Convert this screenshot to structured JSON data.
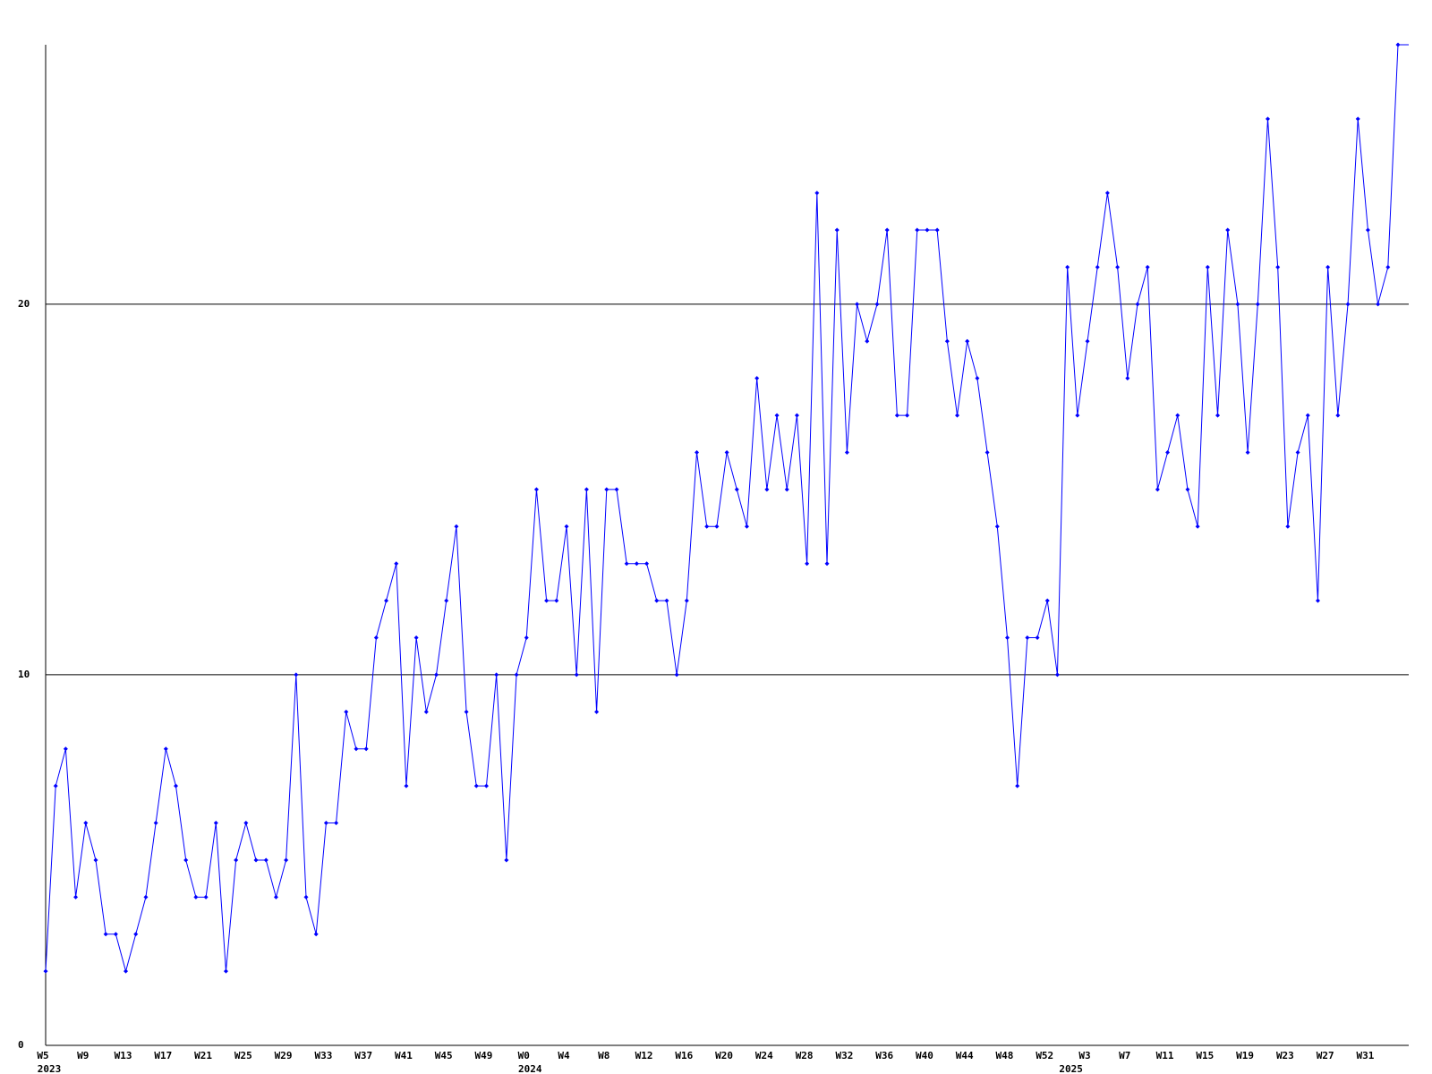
{
  "chart_data": {
    "type": "line",
    "categories": [
      "W5",
      null,
      null,
      null,
      "W9",
      null,
      null,
      null,
      "W13",
      null,
      null,
      null,
      "W17",
      null,
      null,
      null,
      "W21",
      null,
      null,
      null,
      "W25",
      null,
      null,
      null,
      "W29",
      null,
      null,
      null,
      "W33",
      null,
      null,
      null,
      "W37",
      null,
      null,
      null,
      "W41",
      null,
      null,
      null,
      "W45",
      null,
      null,
      null,
      "W49",
      null,
      null,
      null,
      "W0",
      null,
      null,
      null,
      "W4",
      null,
      null,
      null,
      "W8",
      null,
      null,
      null,
      "W12",
      null,
      null,
      null,
      "W16",
      null,
      null,
      null,
      "W20",
      null,
      null,
      null,
      "W24",
      null,
      null,
      null,
      "W28",
      null,
      null,
      null,
      "W32",
      null,
      null,
      null,
      "W36",
      null,
      null,
      null,
      "W40",
      null,
      null,
      null,
      "W44",
      null,
      null,
      null,
      "W48",
      null,
      null,
      null,
      "W52",
      null,
      null,
      null,
      "W3",
      null,
      null,
      null,
      "W7",
      null,
      null,
      null,
      "W11",
      null,
      null,
      null,
      "W15",
      null,
      null,
      null,
      "W19",
      null,
      null,
      null,
      "W23",
      null,
      null,
      null,
      "W27",
      null,
      null,
      null,
      "W31",
      null,
      null,
      null
    ],
    "year_labels": [
      "2023",
      null,
      null,
      null,
      null,
      null,
      null,
      null,
      null,
      null,
      null,
      null,
      null,
      null,
      null,
      null,
      null,
      null,
      null,
      null,
      null,
      null,
      null,
      null,
      null,
      null,
      null,
      null,
      null,
      null,
      null,
      null,
      null,
      null,
      null,
      null,
      null,
      null,
      null,
      null,
      null,
      null,
      null,
      null,
      null,
      null,
      null,
      null,
      "2024",
      null,
      null,
      null,
      null,
      null,
      null,
      null,
      null,
      null,
      null,
      null,
      null,
      null,
      null,
      null,
      null,
      null,
      null,
      null,
      null,
      null,
      null,
      null,
      null,
      null,
      null,
      null,
      null,
      null,
      null,
      null,
      null,
      null,
      null,
      null,
      null,
      null,
      null,
      null,
      null,
      null,
      null,
      null,
      null,
      null,
      null,
      null,
      null,
      null,
      null,
      null,
      null,
      null,
      "2025",
      null,
      null,
      null,
      null,
      null,
      null,
      null,
      null,
      null,
      null,
      null,
      null,
      null,
      null,
      null,
      null,
      null,
      null,
      null,
      null,
      null,
      null,
      null,
      null,
      null,
      null,
      null,
      null,
      null,
      null,
      null,
      null,
      null,
      null
    ],
    "series": [
      {
        "color": "#0000ff",
        "values": [
          2,
          7,
          8,
          4,
          6,
          5,
          3,
          3,
          2,
          3,
          4,
          6,
          8,
          7,
          5,
          4,
          4,
          6,
          2,
          5,
          6,
          5,
          5,
          4,
          5,
          10,
          4,
          3,
          6,
          6,
          9,
          8,
          8,
          11,
          12,
          13,
          7,
          11,
          9,
          10,
          12,
          14,
          9,
          7,
          7,
          10,
          5,
          10,
          11,
          15,
          12,
          12,
          14,
          10,
          15,
          9,
          15,
          15,
          13,
          13,
          13,
          12,
          12,
          10,
          12,
          16,
          14,
          14,
          16,
          15,
          14,
          18,
          15,
          17,
          15,
          17,
          13,
          23,
          13,
          22,
          16,
          20,
          19,
          20,
          22,
          17,
          17,
          22,
          22,
          22,
          19,
          17,
          19,
          18,
          16,
          14,
          11,
          7,
          11,
          11,
          12,
          10,
          21,
          17,
          19,
          21,
          23,
          21,
          18,
          20,
          21,
          15,
          16,
          17,
          15,
          14,
          21,
          17,
          22,
          20,
          16,
          20,
          25,
          21,
          14,
          16,
          17,
          12,
          21,
          17,
          20,
          25,
          22,
          20,
          21,
          27
        ]
      }
    ],
    "ylim": [
      0,
      27
    ],
    "yticks": [
      0,
      10,
      20
    ],
    "grid": true
  }
}
